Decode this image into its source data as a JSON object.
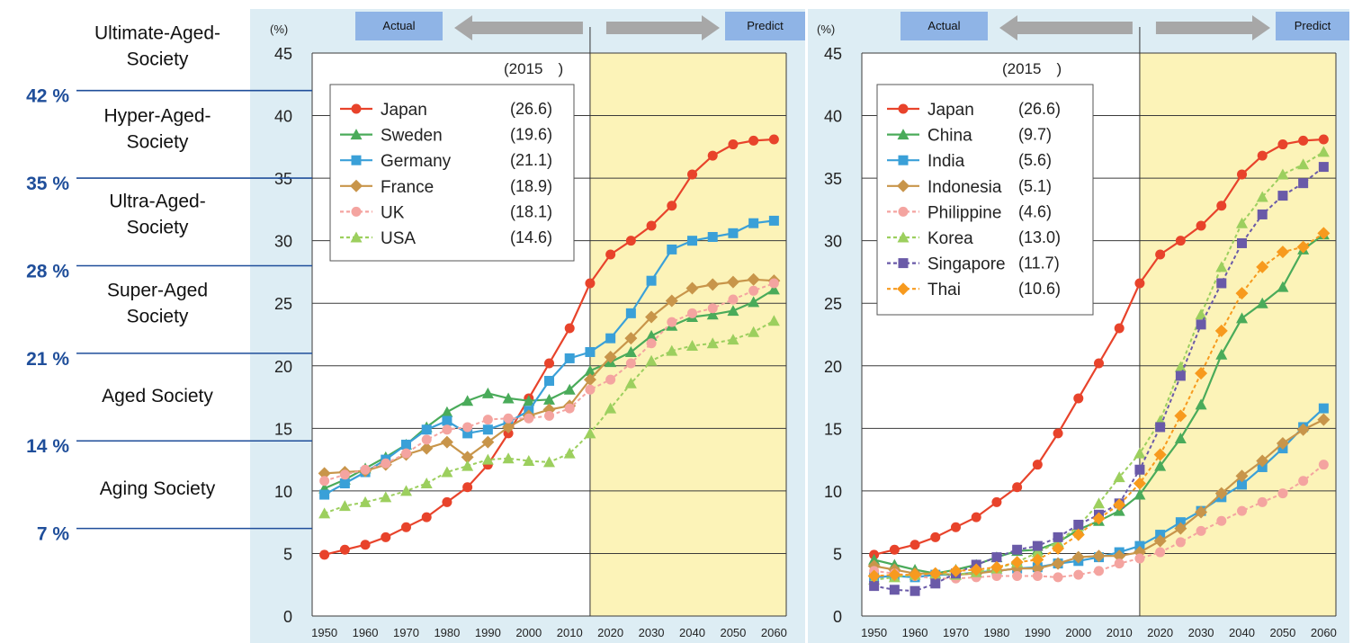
{
  "stages": [
    {
      "label": "Ultimate-Aged-\nSociety"
    },
    {
      "label": "Hyper-Aged-\nSociety"
    },
    {
      "label": "Ultra-Aged-\nSociety"
    },
    {
      "label": "Super-Aged\nSociety"
    },
    {
      "label": "Aged Society"
    },
    {
      "label": "Aging Society"
    }
  ],
  "thresholds": [
    {
      "label": "42 %",
      "value": 42
    },
    {
      "label": "35 %",
      "value": 35
    },
    {
      "label": "28 %",
      "value": 28
    },
    {
      "label": "21 %",
      "value": 21
    },
    {
      "label": "14 %",
      "value": 14
    },
    {
      "label": "7 %",
      "value": 7
    }
  ],
  "colors": {
    "panel_bg": "#ddedf4",
    "predict_bg": "#fcf3b8",
    "banner_bg": "#8fb4e6",
    "arrow": "#a7a7a7",
    "threshold_line": "#1f4e9a",
    "threshold_text": "#1f4e9a"
  },
  "chart_data": [
    {
      "type": "line",
      "ylabel": "(%)",
      "ylim": [
        0,
        45
      ],
      "yticks": [
        0,
        5,
        10,
        15,
        20,
        25,
        30,
        35,
        40,
        45
      ],
      "xlim": [
        1947,
        2063
      ],
      "xticks": [
        1950,
        1960,
        1970,
        1980,
        1990,
        2000,
        2010,
        2020,
        2030,
        2040,
        2050,
        2060
      ],
      "predict_start": 2015,
      "banner_actual": "Actual",
      "banner_predict": "Predict",
      "legend_title": "(2015　)",
      "legend_position": "top-left",
      "grid": true,
      "series": [
        {
          "name": "Japan",
          "value_2015": "(26.6)",
          "color": "#e8432b",
          "marker": "circle",
          "dashed": false,
          "x": [
            1950,
            1955,
            1960,
            1965,
            1970,
            1975,
            1980,
            1985,
            1990,
            1995,
            2000,
            2005,
            2010,
            2015,
            2020,
            2025,
            2030,
            2035,
            2040,
            2045,
            2050,
            2055,
            2060
          ],
          "y": [
            4.9,
            5.3,
            5.7,
            6.3,
            7.1,
            7.9,
            9.1,
            10.3,
            12.1,
            14.6,
            17.4,
            20.2,
            23.0,
            26.6,
            28.9,
            30.0,
            31.2,
            32.8,
            35.3,
            36.8,
            37.7,
            38.0,
            38.1
          ]
        },
        {
          "name": "Sweden",
          "value_2015": "(19.6)",
          "color": "#4aab5a",
          "marker": "triangle",
          "dashed": false,
          "x": [
            1950,
            1955,
            1960,
            1965,
            1970,
            1975,
            1980,
            1985,
            1990,
            1995,
            2000,
            2005,
            2010,
            2015,
            2020,
            2025,
            2030,
            2035,
            2040,
            2045,
            2050,
            2055,
            2060
          ],
          "y": [
            10.2,
            10.9,
            11.8,
            12.7,
            13.7,
            15.1,
            16.3,
            17.2,
            17.8,
            17.4,
            17.2,
            17.3,
            18.1,
            19.6,
            20.3,
            21.1,
            22.4,
            23.2,
            23.9,
            24.1,
            24.4,
            25.1,
            26.1
          ]
        },
        {
          "name": "Germany",
          "value_2015": "(21.1)",
          "color": "#3aa0d8",
          "marker": "square",
          "dashed": false,
          "x": [
            1950,
            1955,
            1960,
            1965,
            1970,
            1975,
            1980,
            1985,
            1990,
            1995,
            2000,
            2005,
            2010,
            2015,
            2020,
            2025,
            2030,
            2035,
            2040,
            2045,
            2050,
            2055,
            2060
          ],
          "y": [
            9.7,
            10.6,
            11.5,
            12.5,
            13.7,
            14.9,
            15.6,
            14.6,
            14.9,
            15.5,
            16.4,
            18.8,
            20.6,
            21.1,
            22.2,
            24.2,
            26.8,
            29.3,
            30.0,
            30.3,
            30.6,
            31.4,
            31.6
          ]
        },
        {
          "name": "France",
          "value_2015": "(18.9)",
          "color": "#c8954a",
          "marker": "diamond",
          "dashed": false,
          "x": [
            1950,
            1955,
            1960,
            1965,
            1970,
            1975,
            1980,
            1985,
            1990,
            1995,
            2000,
            2005,
            2010,
            2015,
            2020,
            2025,
            2030,
            2035,
            2040,
            2045,
            2050,
            2055,
            2060
          ],
          "y": [
            11.4,
            11.5,
            11.6,
            12.1,
            12.9,
            13.4,
            13.9,
            12.7,
            13.9,
            15.1,
            16.0,
            16.5,
            16.8,
            18.9,
            20.7,
            22.2,
            23.9,
            25.2,
            26.2,
            26.5,
            26.7,
            26.9,
            26.8
          ]
        },
        {
          "name": "UK",
          "value_2015": "(18.1)",
          "color": "#f4a4a0",
          "marker": "circle",
          "dashed": true,
          "x": [
            1950,
            1955,
            1960,
            1965,
            1970,
            1975,
            1980,
            1985,
            1990,
            1995,
            2000,
            2005,
            2010,
            2015,
            2020,
            2025,
            2030,
            2035,
            2040,
            2045,
            2050,
            2055,
            2060
          ],
          "y": [
            10.8,
            11.3,
            11.7,
            12.2,
            13.0,
            14.1,
            14.9,
            15.1,
            15.7,
            15.8,
            15.8,
            16.0,
            16.6,
            18.1,
            18.9,
            20.2,
            21.8,
            23.5,
            24.2,
            24.6,
            25.3,
            26.0,
            26.6
          ]
        },
        {
          "name": "USA",
          "value_2015": "(14.6)",
          "color": "#9ccf5e",
          "marker": "triangle",
          "dashed": true,
          "x": [
            1950,
            1955,
            1960,
            1965,
            1970,
            1975,
            1980,
            1985,
            1990,
            1995,
            2000,
            2005,
            2010,
            2015,
            2020,
            2025,
            2030,
            2035,
            2040,
            2045,
            2050,
            2055,
            2060
          ],
          "y": [
            8.2,
            8.8,
            9.1,
            9.5,
            10.0,
            10.6,
            11.5,
            12.0,
            12.5,
            12.6,
            12.4,
            12.3,
            13.0,
            14.6,
            16.6,
            18.6,
            20.4,
            21.2,
            21.6,
            21.8,
            22.1,
            22.7,
            23.6
          ]
        }
      ]
    },
    {
      "type": "line",
      "ylabel": "(%)",
      "ylim": [
        0,
        45
      ],
      "yticks": [
        0,
        5,
        10,
        15,
        20,
        25,
        30,
        35,
        40,
        45
      ],
      "xlim": [
        1947,
        2063
      ],
      "xticks": [
        1950,
        1960,
        1970,
        1980,
        1990,
        2000,
        2010,
        2020,
        2030,
        2040,
        2050,
        2060
      ],
      "predict_start": 2015,
      "banner_actual": "Actual",
      "banner_predict": "Predict",
      "legend_title": "(2015　)",
      "legend_position": "top-left",
      "grid": true,
      "series": [
        {
          "name": "Japan",
          "value_2015": "(26.6)",
          "color": "#e8432b",
          "marker": "circle",
          "dashed": false,
          "x": [
            1950,
            1955,
            1960,
            1965,
            1970,
            1975,
            1980,
            1985,
            1990,
            1995,
            2000,
            2005,
            2010,
            2015,
            2020,
            2025,
            2030,
            2035,
            2040,
            2045,
            2050,
            2055,
            2060
          ],
          "y": [
            4.9,
            5.3,
            5.7,
            6.3,
            7.1,
            7.9,
            9.1,
            10.3,
            12.1,
            14.6,
            17.4,
            20.2,
            23.0,
            26.6,
            28.9,
            30.0,
            31.2,
            32.8,
            35.3,
            36.8,
            37.7,
            38.0,
            38.1
          ]
        },
        {
          "name": "China",
          "value_2015": "(9.7)",
          "color": "#4aab5a",
          "marker": "triangle",
          "dashed": false,
          "x": [
            1950,
            1955,
            1960,
            1965,
            1970,
            1975,
            1980,
            1985,
            1990,
            1995,
            2000,
            2005,
            2010,
            2015,
            2020,
            2025,
            2030,
            2035,
            2040,
            2045,
            2050,
            2055,
            2060
          ],
          "y": [
            4.5,
            4.1,
            3.7,
            3.4,
            3.7,
            4.1,
            4.7,
            5.2,
            5.3,
            5.9,
            6.9,
            7.6,
            8.4,
            9.7,
            12.0,
            14.2,
            16.9,
            20.9,
            23.8,
            25.0,
            26.3,
            29.3,
            30.5
          ]
        },
        {
          "name": "India",
          "value_2015": "(5.6)",
          "color": "#3aa0d8",
          "marker": "square",
          "dashed": false,
          "x": [
            1950,
            1955,
            1960,
            1965,
            1970,
            1975,
            1980,
            1985,
            1990,
            1995,
            2000,
            2005,
            2010,
            2015,
            2020,
            2025,
            2030,
            2035,
            2040,
            2045,
            2050,
            2055,
            2060
          ],
          "y": [
            3.1,
            3.2,
            3.1,
            3.3,
            3.3,
            3.5,
            3.6,
            3.8,
            3.9,
            4.2,
            4.4,
            4.7,
            5.1,
            5.6,
            6.5,
            7.5,
            8.4,
            9.5,
            10.5,
            11.9,
            13.4,
            15.1,
            16.6
          ]
        },
        {
          "name": "Indonesia",
          "value_2015": "(5.1)",
          "color": "#c8954a",
          "marker": "diamond",
          "dashed": false,
          "x": [
            1950,
            1955,
            1960,
            1965,
            1970,
            1975,
            1980,
            1985,
            1990,
            1995,
            2000,
            2005,
            2010,
            2015,
            2020,
            2025,
            2030,
            2035,
            2040,
            2045,
            2050,
            2055,
            2060
          ],
          "y": [
            4.0,
            3.7,
            3.4,
            3.4,
            3.3,
            3.4,
            3.6,
            3.8,
            3.8,
            4.2,
            4.7,
            4.8,
            4.8,
            5.1,
            6.0,
            7.0,
            8.3,
            9.8,
            11.2,
            12.4,
            13.8,
            14.9,
            15.7
          ]
        },
        {
          "name": "Philippine",
          "value_2015": "(4.6)",
          "color": "#f4a4a0",
          "marker": "circle",
          "dashed": true,
          "x": [
            1950,
            1955,
            1960,
            1965,
            1970,
            1975,
            1980,
            1985,
            1990,
            1995,
            2000,
            2005,
            2010,
            2015,
            2020,
            2025,
            2030,
            2035,
            2040,
            2045,
            2050,
            2055,
            2060
          ],
          "y": [
            3.6,
            3.4,
            3.2,
            3.0,
            3.0,
            3.1,
            3.2,
            3.2,
            3.2,
            3.1,
            3.3,
            3.6,
            4.2,
            4.6,
            5.1,
            5.9,
            6.8,
            7.6,
            8.4,
            9.1,
            9.8,
            10.8,
            12.1
          ]
        },
        {
          "name": "Korea",
          "value_2015": "(13.0)",
          "color": "#9ccf5e",
          "marker": "triangle",
          "dashed": true,
          "x": [
            1950,
            1955,
            1960,
            1965,
            1970,
            1975,
            1980,
            1985,
            1990,
            1995,
            2000,
            2005,
            2010,
            2015,
            2020,
            2025,
            2030,
            2035,
            2040,
            2045,
            2050,
            2055,
            2060
          ],
          "y": [
            2.9,
            3.1,
            3.3,
            3.4,
            3.3,
            3.5,
            3.8,
            4.3,
            5.1,
            5.9,
            7.2,
            9.0,
            11.1,
            13.0,
            15.6,
            19.9,
            24.1,
            27.9,
            31.4,
            33.5,
            35.3,
            36.1,
            37.1
          ]
        },
        {
          "name": "Singapore",
          "value_2015": "(11.7)",
          "color": "#6a5aa8",
          "marker": "square",
          "dashed": true,
          "x": [
            1950,
            1955,
            1960,
            1965,
            1970,
            1975,
            1980,
            1985,
            1990,
            1995,
            2000,
            2005,
            2010,
            2015,
            2020,
            2025,
            2030,
            2035,
            2040,
            2045,
            2050,
            2055,
            2060
          ],
          "y": [
            2.4,
            2.1,
            2.0,
            2.6,
            3.4,
            4.1,
            4.7,
            5.3,
            5.6,
            6.3,
            7.3,
            8.1,
            9.0,
            11.7,
            15.1,
            19.2,
            23.3,
            26.6,
            29.8,
            32.1,
            33.6,
            34.6,
            35.9
          ]
        },
        {
          "name": "Thai",
          "value_2015": "(10.6)",
          "color": "#f79a1e",
          "marker": "diamond",
          "dashed": true,
          "x": [
            1950,
            1955,
            1960,
            1965,
            1970,
            1975,
            1980,
            1985,
            1990,
            1995,
            2000,
            2005,
            2010,
            2015,
            2020,
            2025,
            2030,
            2035,
            2040,
            2045,
            2050,
            2055,
            2060
          ],
          "y": [
            3.2,
            3.3,
            3.3,
            3.4,
            3.6,
            3.7,
            3.9,
            4.3,
            4.5,
            5.4,
            6.5,
            7.8,
            8.9,
            10.6,
            12.9,
            16.0,
            19.4,
            22.8,
            25.8,
            27.9,
            29.1,
            29.5,
            30.6
          ]
        }
      ]
    }
  ]
}
